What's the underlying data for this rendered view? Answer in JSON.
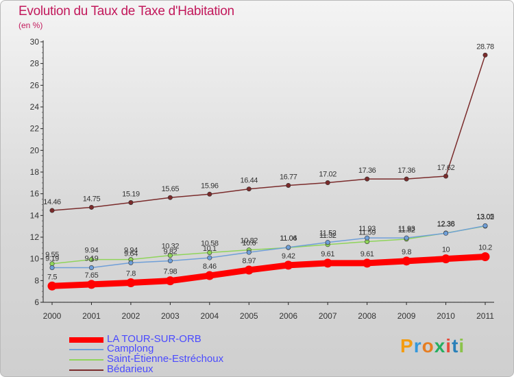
{
  "title": "Evolution du Taux de Taxe d'Habitation",
  "subtitle": "(en %)",
  "logo": "Proxiti",
  "chart_data": {
    "type": "line",
    "x": [
      "2000",
      "2001",
      "2002",
      "2003",
      "2004",
      "2005",
      "2006",
      "2007",
      "2008",
      "2009",
      "2010",
      "2011"
    ],
    "ylim": [
      6,
      30
    ],
    "yticks": [
      6,
      8,
      10,
      12,
      14,
      16,
      18,
      20,
      22,
      24,
      26,
      28,
      30
    ],
    "grid": false,
    "legend_position": "bottom-left",
    "series": [
      {
        "name": "LA TOUR-SUR-ORB",
        "color": "#ff0000",
        "values": [
          7.5,
          7.65,
          7.8,
          7.98,
          8.46,
          8.97,
          9.42,
          9.61,
          9.61,
          9.8,
          10,
          10.2
        ],
        "labels": [
          "7.5",
          "7.65",
          "7.8",
          "7.98",
          "8.46",
          "8.97",
          "9.42",
          "9.61",
          "9.61",
          "9.8",
          "10",
          "10.2"
        ]
      },
      {
        "name": "Camplong",
        "color": "#6f9fd8",
        "values": [
          9.19,
          9.19,
          9.64,
          9.82,
          10.1,
          10.6,
          11.06,
          11.52,
          11.93,
          11.93,
          12.36,
          13.05
        ],
        "labels": [
          "9.19",
          "9.19",
          "9.64",
          "9.82",
          "10.1",
          "10.6",
          "11.06",
          "11.52",
          "11.93",
          "11.93",
          "12.36",
          "13.05"
        ]
      },
      {
        "name": "Saint-Étienne-Estréchoux",
        "color": "#8fd45a",
        "values": [
          9.55,
          9.94,
          9.94,
          10.32,
          10.58,
          10.82,
          11.04,
          11.32,
          11.59,
          11.82,
          12.38,
          13.02
        ],
        "labels": [
          "9.55",
          "9.94",
          "9.94",
          "10.32",
          "10.58",
          "10.82",
          "11.04",
          "11.32",
          "11.59",
          "11.82",
          "12.38",
          "13.02"
        ]
      },
      {
        "name": "Bédarieux",
        "color": "#7a2b2b",
        "values": [
          14.46,
          14.75,
          15.19,
          15.65,
          15.96,
          16.44,
          16.77,
          17.02,
          17.36,
          17.36,
          17.62,
          28.78
        ],
        "labels": [
          "14.46",
          "14.75",
          "15.19",
          "15.65",
          "15.96",
          "16.44",
          "16.77",
          "17.02",
          "17.36",
          "17.36",
          "17.62",
          "28.78"
        ]
      }
    ]
  }
}
